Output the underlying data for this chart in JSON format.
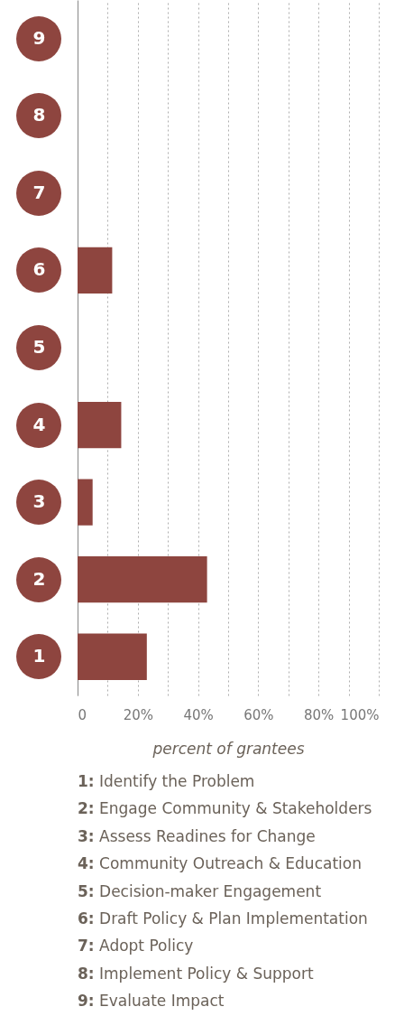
{
  "chart_data": {
    "type": "bar",
    "orientation": "horizontal",
    "categories": [
      "9",
      "8",
      "7",
      "6",
      "5",
      "4",
      "3",
      "2",
      "1"
    ],
    "values": [
      0,
      0,
      0,
      11.5,
      0,
      14.5,
      5,
      43,
      23
    ],
    "color": "#8e453f",
    "xlabel": "percent of grantees",
    "xlim": [
      0,
      100
    ],
    "xticks": [
      {
        "value": 0,
        "label": "0"
      },
      {
        "value": 10,
        "label": null
      },
      {
        "value": 20,
        "label": "20%"
      },
      {
        "value": 30,
        "label": null
      },
      {
        "value": 40,
        "label": "40%"
      },
      {
        "value": 50,
        "label": null
      },
      {
        "value": 60,
        "label": "60%"
      },
      {
        "value": 70,
        "label": null
      },
      {
        "value": 80,
        "label": "80%"
      },
      {
        "value": 90,
        "label": null
      },
      {
        "value": 100,
        "label": "100%"
      }
    ],
    "grid": "x",
    "annotations": [
      "1: Identify the Problem",
      "2: Engage Community & Stakeholders",
      "3: Assess Readines for Change",
      "4: Community Outreach & Education",
      "5: Decision-maker Engagement",
      "6: Draft Policy & Plan Implementation",
      "7: Adopt Policy",
      "8: Implement Policy & Support",
      "9: Evaluate Impact"
    ]
  }
}
